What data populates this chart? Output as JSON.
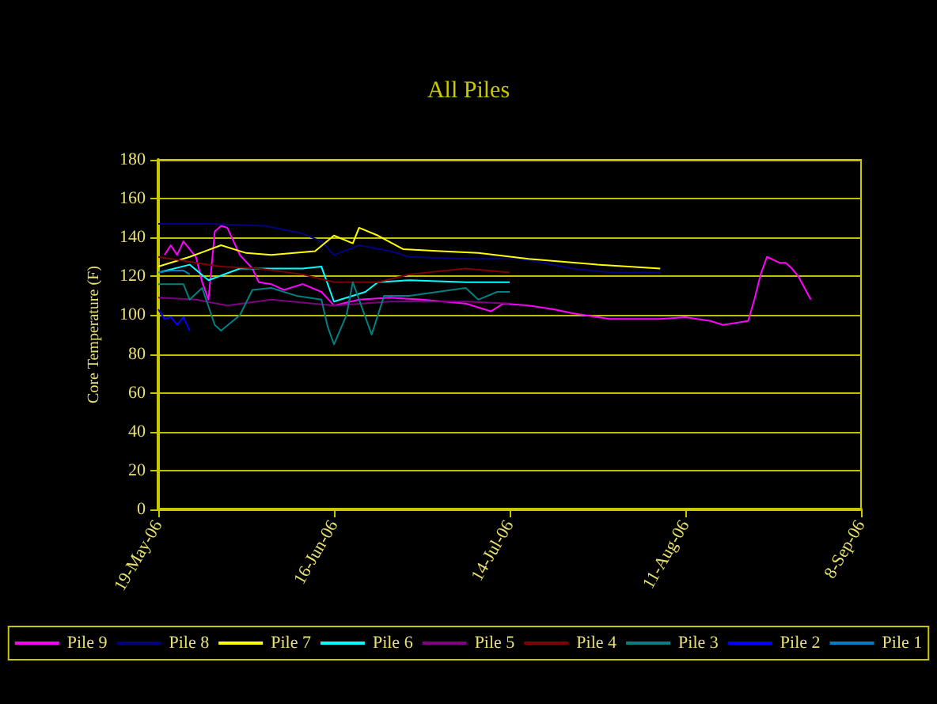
{
  "chart_data": {
    "type": "line",
    "title": "All Piles",
    "ylabel": "Core Temperature (F)",
    "xlim": [
      "2006-05-19",
      "2006-09-08"
    ],
    "xticks": [
      {
        "value": "2006-05-19",
        "label": "19-May-06"
      },
      {
        "value": "2006-06-16",
        "label": "16-Jun-06"
      },
      {
        "value": "2006-07-14",
        "label": "14-Jul-06"
      },
      {
        "value": "2006-08-11",
        "label": "11-Aug-06"
      },
      {
        "value": "2006-09-08",
        "label": "8-Sep-06"
      }
    ],
    "ylim": [
      0,
      180
    ],
    "yticks": [
      0,
      20,
      40,
      60,
      80,
      100,
      120,
      140,
      160,
      180
    ],
    "grid": "y",
    "legend": "bottom",
    "marker": "none",
    "line_style": "solid",
    "series": [
      {
        "name": "Pile 9",
        "color": "#ff00ff",
        "x": [
          "2006-05-20",
          "2006-05-21",
          "2006-05-22",
          "2006-05-23",
          "2006-05-25",
          "2006-05-26",
          "2006-05-27",
          "2006-05-28",
          "2006-05-29",
          "2006-05-30",
          "2006-05-31",
          "2006-06-01",
          "2006-06-03",
          "2006-06-04",
          "2006-06-06",
          "2006-06-08",
          "2006-06-11",
          "2006-06-14",
          "2006-06-16",
          "2006-06-20",
          "2006-06-25",
          "2006-06-30",
          "2006-07-07",
          "2006-07-11",
          "2006-07-13",
          "2006-07-17",
          "2006-07-21",
          "2006-07-24",
          "2006-07-30",
          "2006-08-03",
          "2006-08-07",
          "2006-08-11",
          "2006-08-15",
          "2006-08-17",
          "2006-08-21",
          "2006-08-22",
          "2006-08-23",
          "2006-08-24",
          "2006-08-26",
          "2006-08-27",
          "2006-08-28",
          "2006-08-29",
          "2006-08-30",
          "2006-08-31"
        ],
        "values": [
          131,
          136,
          131,
          138,
          130,
          117,
          108,
          143,
          146,
          145,
          138,
          131,
          124,
          117,
          116,
          113,
          116,
          112,
          105,
          108,
          109,
          108,
          106,
          102,
          106,
          105,
          103,
          101,
          98,
          98,
          98,
          99,
          97,
          95,
          97,
          108,
          121,
          130,
          127,
          127,
          124,
          120,
          114,
          108
        ]
      },
      {
        "name": "Pile 8",
        "color": "#000080",
        "x": [
          "2006-05-19",
          "2006-05-27",
          "2006-06-05",
          "2006-06-11",
          "2006-06-14",
          "2006-06-16",
          "2006-06-20",
          "2006-06-25",
          "2006-06-28",
          "2006-07-07",
          "2006-07-16",
          "2006-07-24",
          "2006-07-30",
          "2006-08-07"
        ],
        "values": [
          147,
          147,
          146,
          142,
          138,
          131,
          136,
          133,
          130,
          129,
          129,
          124,
          122,
          122
        ]
      },
      {
        "name": "Pile 7",
        "color": "#ffff00",
        "x": [
          "2006-05-19",
          "2006-05-24",
          "2006-05-29",
          "2006-06-02",
          "2006-06-06",
          "2006-06-13",
          "2006-06-16",
          "2006-06-19",
          "2006-06-20",
          "2006-06-23",
          "2006-06-27",
          "2006-07-03",
          "2006-07-09",
          "2006-07-17",
          "2006-07-28",
          "2006-08-07"
        ],
        "values": [
          125,
          130,
          136,
          132,
          131,
          133,
          141,
          137,
          145,
          141,
          134,
          133,
          132,
          129,
          126,
          124
        ]
      },
      {
        "name": "Pile 6",
        "color": "#00ffff",
        "x": [
          "2006-05-19",
          "2006-05-24",
          "2006-05-27",
          "2006-06-01",
          "2006-06-06",
          "2006-06-11",
          "2006-06-14",
          "2006-06-16",
          "2006-06-21",
          "2006-06-23",
          "2006-06-28",
          "2006-07-07",
          "2006-07-14"
        ],
        "values": [
          122,
          126,
          118,
          124,
          124,
          124,
          125,
          107,
          112,
          117,
          118,
          117,
          117
        ]
      },
      {
        "name": "Pile 5",
        "color": "#800080",
        "x": [
          "2006-05-19",
          "2006-05-25",
          "2006-05-30",
          "2006-06-06",
          "2006-06-16",
          "2006-06-25",
          "2006-07-07",
          "2006-07-14"
        ],
        "values": [
          109,
          108,
          105,
          108,
          105,
          107,
          107,
          106
        ]
      },
      {
        "name": "Pile 4",
        "color": "#800000",
        "x": [
          "2006-05-19",
          "2006-05-29",
          "2006-06-04",
          "2006-06-11",
          "2006-06-16",
          "2006-06-23",
          "2006-06-28",
          "2006-07-07",
          "2006-07-14"
        ],
        "values": [
          130,
          125,
          124,
          121,
          117,
          117,
          121,
          124,
          122
        ]
      },
      {
        "name": "Pile 3",
        "color": "#008080",
        "x": [
          "2006-05-19",
          "2006-05-23",
          "2006-05-24",
          "2006-05-26",
          "2006-05-28",
          "2006-05-29",
          "2006-06-01",
          "2006-06-03",
          "2006-06-06",
          "2006-06-10",
          "2006-06-14",
          "2006-06-15",
          "2006-06-16",
          "2006-06-18",
          "2006-06-19",
          "2006-06-21",
          "2006-06-22",
          "2006-06-24",
          "2006-06-28",
          "2006-07-07",
          "2006-07-09",
          "2006-07-12",
          "2006-07-14"
        ],
        "values": [
          116,
          116,
          108,
          114,
          95,
          92,
          100,
          113,
          114,
          110,
          108,
          94,
          85,
          100,
          117,
          99,
          90,
          110,
          110,
          114,
          108,
          112,
          112
        ]
      },
      {
        "name": "Pile 2",
        "color": "#0000ff",
        "x": [
          "2006-05-19",
          "2006-05-20",
          "2006-05-21",
          "2006-05-22",
          "2006-05-23",
          "2006-05-24"
        ],
        "values": [
          103,
          98,
          99,
          95,
          99,
          92
        ]
      },
      {
        "name": "Pile 1",
        "color": "#0080c0",
        "x": [
          "2006-05-19",
          "2006-05-21",
          "2006-05-23",
          "2006-05-24"
        ],
        "values": [
          122,
          123,
          123,
          121
        ]
      }
    ]
  }
}
